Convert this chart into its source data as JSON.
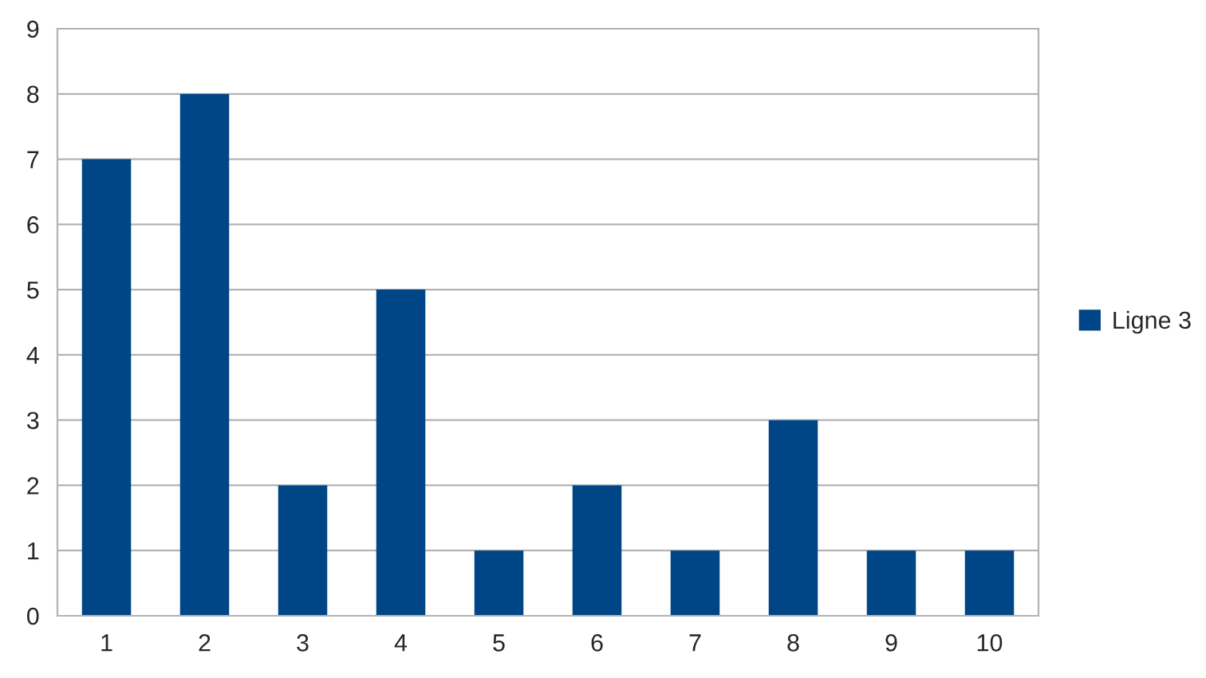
{
  "chart_data": {
    "type": "bar",
    "categories": [
      "1",
      "2",
      "3",
      "4",
      "5",
      "6",
      "7",
      "8",
      "9",
      "10"
    ],
    "series": [
      {
        "name": "Ligne 3",
        "color": "#004586",
        "values": [
          7,
          8,
          2,
          5,
          1,
          2,
          1,
          3,
          1,
          1
        ]
      }
    ],
    "ylim": [
      0,
      9
    ],
    "yticks": [
      0,
      1,
      2,
      3,
      4,
      5,
      6,
      7,
      8,
      9
    ],
    "grid": "y",
    "legend": "right"
  }
}
